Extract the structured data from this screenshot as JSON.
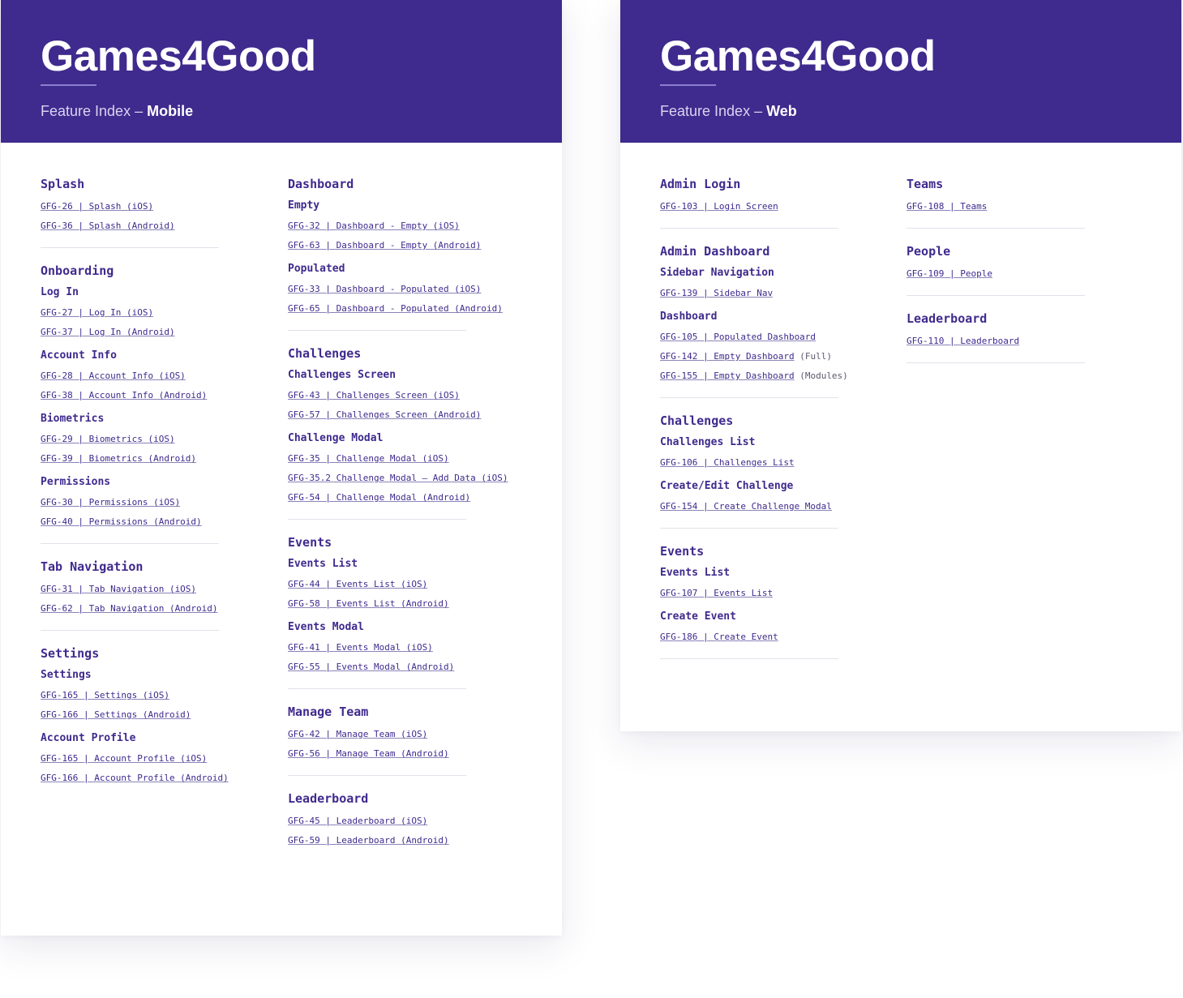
{
  "brand_color": "#3f2a8d",
  "mobile": {
    "title": "Games4Good",
    "subtitle_prefix": "Feature Index – ",
    "subtitle_em": "Mobile",
    "col1": [
      {
        "title": "Splash",
        "groups": [
          {
            "links": [
              "GFG-26 | Splash (iOS)",
              "GFG-36 | Splash (Android)"
            ]
          }
        ]
      },
      {
        "title": "Onboarding",
        "groups": [
          {
            "name": "Log In",
            "links": [
              "GFG-27 | Log In (iOS)",
              "GFG-37 | Log In (Android)"
            ]
          },
          {
            "name": "Account Info",
            "links": [
              "GFG-28 | Account Info (iOS)",
              "GFG-38 | Account Info (Android)"
            ]
          },
          {
            "name": "Biometrics",
            "links": [
              "GFG-29 | Biometrics (iOS)",
              "GFG-39 | Biometrics (Android)"
            ]
          },
          {
            "name": "Permissions",
            "links": [
              "GFG-30 | Permissions (iOS)",
              "GFG-40 | Permissions (Android)"
            ]
          }
        ]
      },
      {
        "title": "Tab Navigation",
        "groups": [
          {
            "links": [
              "GFG-31 | Tab Navigation (iOS)",
              "GFG-62 | Tab Navigation (Android)"
            ]
          }
        ]
      },
      {
        "title": "Settings",
        "groups": [
          {
            "name": "Settings",
            "links": [
              "GFG-165 | Settings (iOS)",
              "GFG-166 | Settings (Android)"
            ]
          },
          {
            "name": "Account Profile",
            "links": [
              "GFG-165 | Account Profile (iOS)",
              "GFG-166 | Account Profile (Android)"
            ]
          }
        ]
      }
    ],
    "col2": [
      {
        "title": "Dashboard",
        "groups": [
          {
            "name": "Empty",
            "links": [
              "GFG-32 | Dashboard - Empty (iOS)",
              "GFG-63 | Dashboard - Empty (Android)"
            ]
          },
          {
            "name": "Populated",
            "links": [
              "GFG-33 | Dashboard - Populated (iOS)",
              "GFG-65 | Dashboard - Populated (Android)"
            ]
          }
        ]
      },
      {
        "title": "Challenges",
        "groups": [
          {
            "name": "Challenges Screen",
            "links": [
              "GFG-43 | Challenges Screen (iOS)",
              "GFG-57 | Challenges Screen (Android)"
            ]
          },
          {
            "name": "Challenge Modal",
            "links": [
              "GFG-35 | Challenge Modal (iOS)",
              "GFG-35.2 Challenge Modal – Add Data (iOS)",
              "GFG-54 | Challenge Modal (Android)"
            ]
          }
        ]
      },
      {
        "title": "Events",
        "groups": [
          {
            "name": "Events List",
            "links": [
              "GFG-44 | Events List (iOS)",
              "GFG-58 | Events List (Android)"
            ]
          },
          {
            "name": "Events Modal",
            "links": [
              "GFG-41 | Events Modal (iOS)",
              "GFG-55 | Events Modal (Android)"
            ]
          }
        ]
      },
      {
        "title": "Manage Team",
        "groups": [
          {
            "links": [
              "GFG-42 | Manage Team (iOS)",
              "GFG-56 | Manage Team (Android)"
            ]
          }
        ]
      },
      {
        "title": "Leaderboard",
        "groups": [
          {
            "links": [
              "GFG-45 | Leaderboard (iOS)",
              "GFG-59 | Leaderboard (Android)"
            ]
          }
        ]
      }
    ]
  },
  "web": {
    "title": "Games4Good",
    "subtitle_prefix": "Feature Index – ",
    "subtitle_em": "Web",
    "col1": [
      {
        "title": "Admin Login",
        "groups": [
          {
            "links": [
              "GFG-103 | Login Screen"
            ]
          }
        ]
      },
      {
        "title": "Admin Dashboard",
        "groups": [
          {
            "name": "Sidebar Navigation",
            "links": [
              "GFG-139 | Sidebar Nav"
            ]
          },
          {
            "name": "Dashboard",
            "links": [
              "GFG-105 | Populated Dashboard",
              {
                "text": "GFG-142 | Empty Dashboard",
                "note": " (Full)"
              },
              {
                "text": "GFG-155 | Empty Dashboard",
                "note": " (Modules)"
              }
            ]
          }
        ]
      },
      {
        "title": "Challenges",
        "groups": [
          {
            "name": "Challenges List",
            "links": [
              "GFG-106 | Challenges List"
            ]
          },
          {
            "name": "Create/Edit Challenge",
            "links": [
              "GFG-154 | Create Challenge Modal"
            ]
          }
        ]
      },
      {
        "title": "Events",
        "groups": [
          {
            "name": "Events List",
            "links": [
              "GFG-107 | Events List"
            ]
          },
          {
            "name": "Create Event",
            "links": [
              "GFG-186 | Create Event"
            ]
          }
        ]
      }
    ],
    "col2": [
      {
        "title": "Teams",
        "groups": [
          {
            "links": [
              "GFG-108 | Teams"
            ]
          }
        ]
      },
      {
        "title": "People",
        "groups": [
          {
            "links": [
              "GFG-109 | People"
            ]
          }
        ]
      },
      {
        "title": "Leaderboard",
        "groups": [
          {
            "links": [
              "GFG-110 | Leaderboard"
            ]
          }
        ]
      }
    ]
  }
}
